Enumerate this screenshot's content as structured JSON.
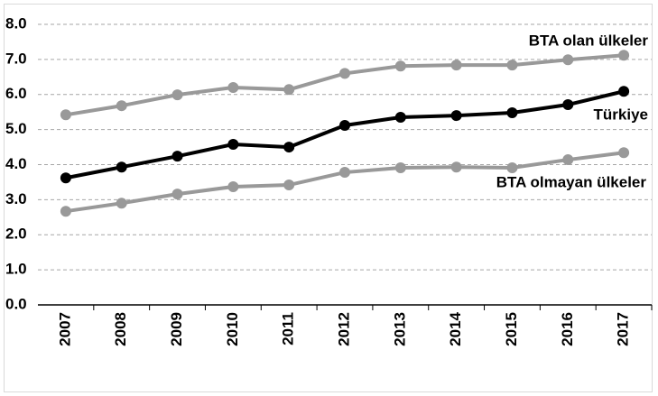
{
  "chart_data": {
    "type": "line",
    "categories": [
      "2007",
      "2008",
      "2009",
      "2010",
      "2011",
      "2012",
      "2013",
      "2014",
      "2015",
      "2016",
      "2017"
    ],
    "series": [
      {
        "name": "BTA olan ülkeler",
        "color": "#999999",
        "values": [
          5.42,
          5.68,
          5.99,
          6.2,
          6.14,
          6.6,
          6.81,
          6.84,
          6.84,
          6.99,
          7.12
        ]
      },
      {
        "name": "Türkiye",
        "color": "#000000",
        "values": [
          3.62,
          3.93,
          4.24,
          4.58,
          4.5,
          5.12,
          5.35,
          5.4,
          5.48,
          5.71,
          6.09
        ]
      },
      {
        "name": "BTA olmayan ülkeler",
        "color": "#999999",
        "values": [
          2.67,
          2.9,
          3.16,
          3.37,
          3.42,
          3.78,
          3.91,
          3.93,
          3.91,
          4.14,
          4.34
        ]
      }
    ],
    "ylim": [
      0,
      8
    ],
    "yticks": [
      {
        "value": 0,
        "label": "0.0"
      },
      {
        "value": 1,
        "label": "1.0"
      },
      {
        "value": 2,
        "label": "2.0"
      },
      {
        "value": 3,
        "label": "3.0"
      },
      {
        "value": 4,
        "label": "4.0"
      },
      {
        "value": 5,
        "label": "5.0"
      },
      {
        "value": 6,
        "label": "6.0"
      },
      {
        "value": 7,
        "label": "7.0"
      },
      {
        "value": 8,
        "label": "8.0"
      }
    ],
    "grid": true
  }
}
